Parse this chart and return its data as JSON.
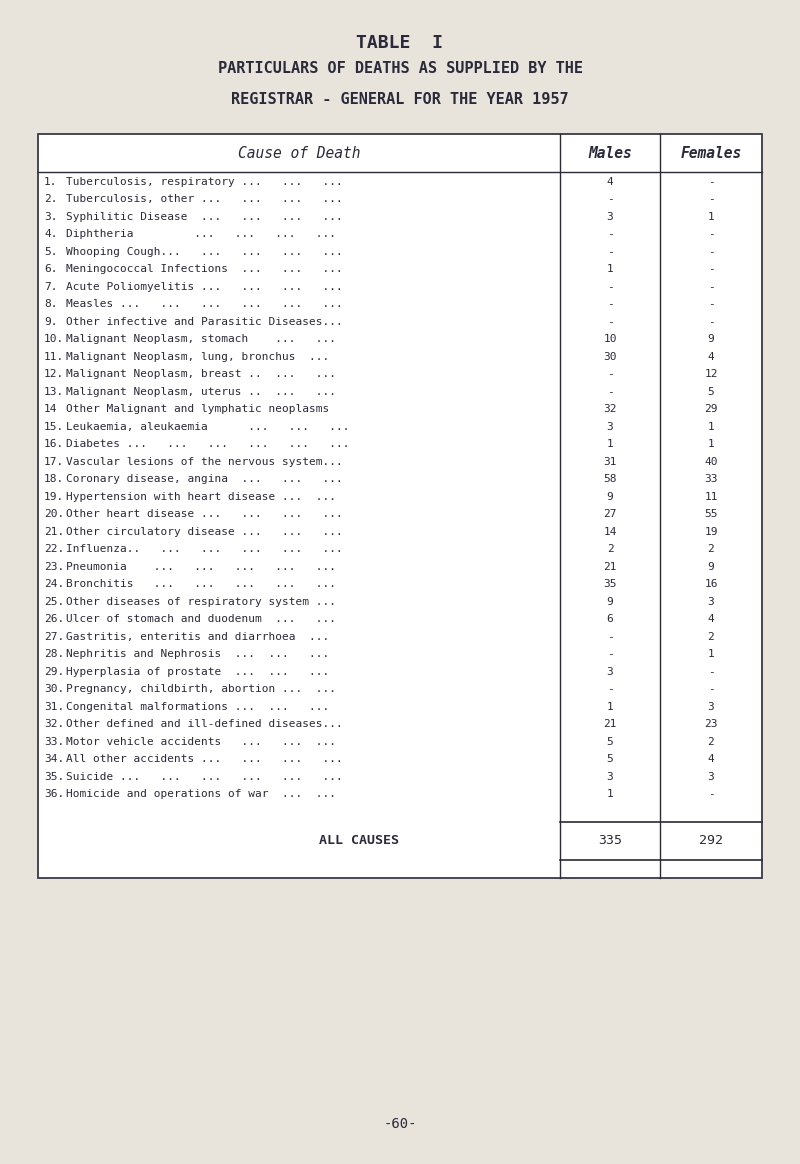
{
  "title1": "TABLE  I",
  "title2": "PARTICULARS OF DEATHS AS SUPPLIED BY THE",
  "title3": "REGISTRAR - GENERAL FOR THE YEAR 1957",
  "col_header_cause": "Cause of Death",
  "col_header_males": "Males",
  "col_header_females": "Females",
  "rows": [
    {
      "num": "1.",
      "cause": "Tuberculosis, respiratory ...   ...   ...",
      "males": "4",
      "females": "-"
    },
    {
      "num": "2.",
      "cause": "Tuberculosis, other ...   ...   ...   ...",
      "males": "-",
      "females": "-"
    },
    {
      "num": "3.",
      "cause": "Syphilitic Disease  ...   ...   ...   ...",
      "males": "3",
      "females": "1"
    },
    {
      "num": "4.",
      "cause": "Diphtheria         ...   ...   ...   ...",
      "males": "-",
      "females": "-"
    },
    {
      "num": "5.",
      "cause": "Whooping Cough...   ...   ...   ...   ...",
      "males": "-",
      "females": "-"
    },
    {
      "num": "6.",
      "cause": "Meningococcal Infections  ...   ...   ...",
      "males": "1",
      "females": "-"
    },
    {
      "num": "7.",
      "cause": "Acute Poliomyelitis ...   ...   ...   ...",
      "males": "-",
      "females": "-"
    },
    {
      "num": "8.",
      "cause": "Measles ...   ...   ...   ...   ...   ...",
      "males": "-",
      "females": "-"
    },
    {
      "num": "9.",
      "cause": "Other infective and Parasitic Diseases...",
      "males": "-",
      "females": "-"
    },
    {
      "num": "10.",
      "cause": "Malignant Neoplasm, stomach    ...   ...",
      "males": "10",
      "females": "9"
    },
    {
      "num": "11.",
      "cause": "Malignant Neoplasm, lung, bronchus  ...",
      "males": "30",
      "females": "4"
    },
    {
      "num": "12.",
      "cause": "Malignant Neoplasm, breast ..  ...   ...",
      "males": "-",
      "females": "12"
    },
    {
      "num": "13.",
      "cause": "Malignant Neoplasm, uterus ..  ...   ...",
      "males": "-",
      "females": "5"
    },
    {
      "num": "14",
      "cause": "Other Malignant and lymphatic neoplasms",
      "males": "32",
      "females": "29"
    },
    {
      "num": "15.",
      "cause": "Leukaemia, aleukaemia      ...   ...   ...",
      "males": "3",
      "females": "1"
    },
    {
      "num": "16.",
      "cause": "Diabetes ...   ...   ...   ...   ...   ...",
      "males": "1",
      "females": "1"
    },
    {
      "num": "17.",
      "cause": "Vascular lesions of the nervous system...",
      "males": "31",
      "females": "40"
    },
    {
      "num": "18.",
      "cause": "Coronary disease, angina  ...   ...   ...",
      "males": "58",
      "females": "33"
    },
    {
      "num": "19.",
      "cause": "Hypertension with heart disease ...  ...",
      "males": "9",
      "females": "11"
    },
    {
      "num": "20.",
      "cause": "Other heart disease ...   ...   ...   ...",
      "males": "27",
      "females": "55"
    },
    {
      "num": "21.",
      "cause": "Other circulatory disease ...   ...   ...",
      "males": "14",
      "females": "19"
    },
    {
      "num": "22.",
      "cause": "Influenza..   ...   ...   ...   ...   ...",
      "males": "2",
      "females": "2"
    },
    {
      "num": "23.",
      "cause": "Pneumonia    ...   ...   ...   ...   ...",
      "males": "21",
      "females": "9"
    },
    {
      "num": "24.",
      "cause": "Bronchitis   ...   ...   ...   ...   ...",
      "males": "35",
      "females": "16"
    },
    {
      "num": "25.",
      "cause": "Other diseases of respiratory system ...",
      "males": "9",
      "females": "3"
    },
    {
      "num": "26.",
      "cause": "Ulcer of stomach and duodenum  ...   ...",
      "males": "6",
      "females": "4"
    },
    {
      "num": "27.",
      "cause": "Gastritis, enteritis and diarrhoea  ...",
      "males": "-",
      "females": "2"
    },
    {
      "num": "28.",
      "cause": "Nephritis and Nephrosis  ...  ...   ...",
      "males": "-",
      "females": "1"
    },
    {
      "num": "29.",
      "cause": "Hyperplasia of prostate  ...  ...   ...",
      "males": "3",
      "females": "-"
    },
    {
      "num": "30.",
      "cause": "Pregnancy, childbirth, abortion ...  ...",
      "males": "-",
      "females": "-"
    },
    {
      "num": "31.",
      "cause": "Congenital malformations ...  ...   ...",
      "males": "1",
      "females": "3"
    },
    {
      "num": "32.",
      "cause": "Other defined and ill-defined diseases...",
      "males": "21",
      "females": "23"
    },
    {
      "num": "33.",
      "cause": "Motor vehicle accidents   ...   ...  ...",
      "males": "5",
      "females": "2"
    },
    {
      "num": "34.",
      "cause": "All other accidents ...   ...   ...   ...",
      "males": "5",
      "females": "4"
    },
    {
      "num": "35.",
      "cause": "Suicide ...   ...   ...   ...   ...   ...",
      "males": "3",
      "females": "3"
    },
    {
      "num": "36.",
      "cause": "Homicide and operations of war  ...  ...",
      "males": "1",
      "females": "-"
    }
  ],
  "footer_label": "ALL CAUSES",
  "footer_males": "335",
  "footer_females": "292",
  "page_num": "-60-",
  "bg_color": "#e8e4dc",
  "text_color": "#2a2a3a",
  "font_family": "monospace"
}
